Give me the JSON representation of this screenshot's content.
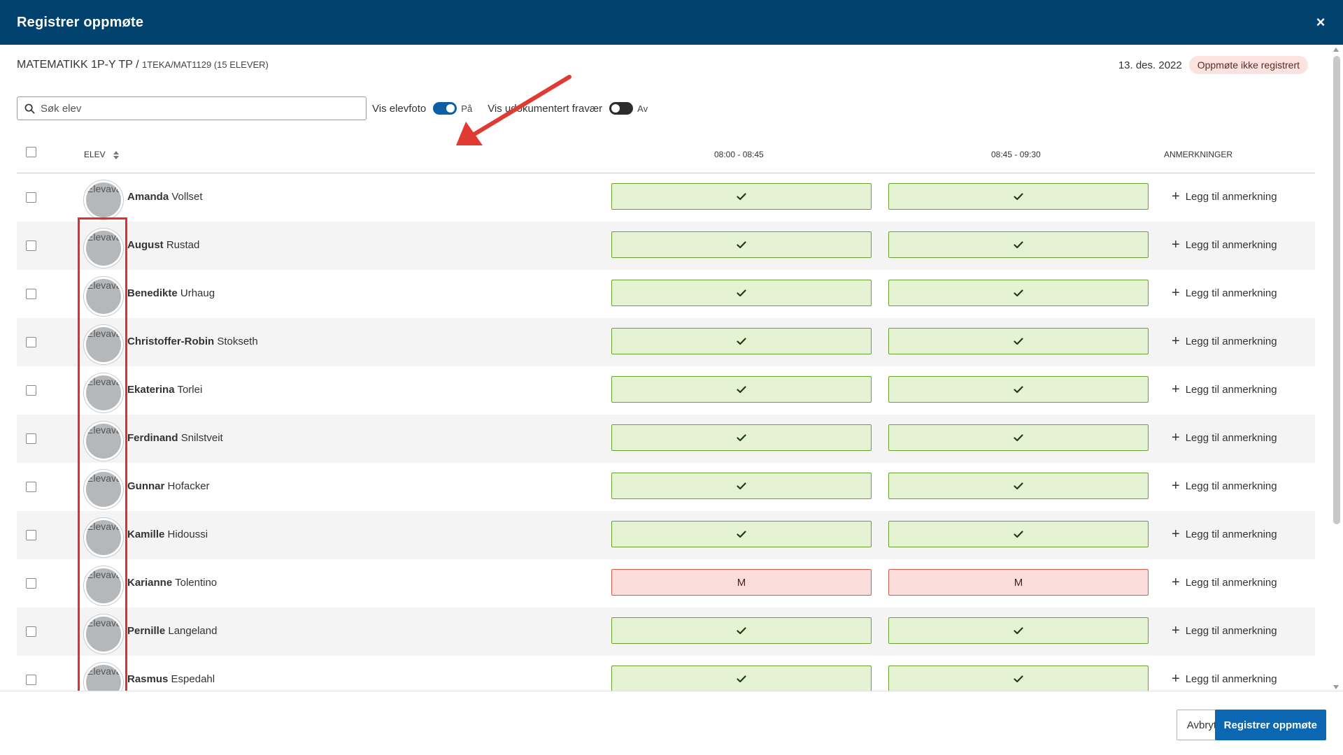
{
  "modal": {
    "title": "Registrer oppmøte",
    "close_label": "×"
  },
  "course": {
    "name": "MATEMATIKK 1P-Y TP",
    "separator": " / ",
    "group": "1TEKA/MAT1129 (15 ELEVER)",
    "date": "13. des. 2022",
    "status": "Oppmøte ikke registrert"
  },
  "toolbar": {
    "search_placeholder": "Søk elev",
    "photo_toggle_label": "Vis elevfoto",
    "photo_toggle_state": "På",
    "absence_toggle_label": "Vis udokumentert fravær",
    "absence_toggle_state": "Av"
  },
  "table": {
    "headers": {
      "student": "ELEV",
      "period1": "08:00 - 08:45",
      "period2": "08:45 - 09:30",
      "remarks": "ANMERKNINGER"
    },
    "avatar_alt": "Elevavatar",
    "remark_label": "Legg til anmerkning",
    "rows": [
      {
        "first": "Amanda",
        "last": "Vollset",
        "p1": "present",
        "p2": "present"
      },
      {
        "first": "August",
        "last": "Rustad",
        "p1": "present",
        "p2": "present"
      },
      {
        "first": "Benedikte",
        "last": "Urhaug",
        "p1": "present",
        "p2": "present"
      },
      {
        "first": "Christoffer-Robin",
        "last": "Stokseth",
        "p1": "present",
        "p2": "present"
      },
      {
        "first": "Ekaterina",
        "last": "Torlei",
        "p1": "present",
        "p2": "present"
      },
      {
        "first": "Ferdinand",
        "last": "Snilstveit",
        "p1": "present",
        "p2": "present"
      },
      {
        "first": "Gunnar",
        "last": "Hofacker",
        "p1": "present",
        "p2": "present"
      },
      {
        "first": "Kamille",
        "last": "Hidoussi",
        "p1": "present",
        "p2": "present"
      },
      {
        "first": "Karianne",
        "last": "Tolentino",
        "p1": "M",
        "p2": "M"
      },
      {
        "first": "Pernille",
        "last": "Langeland",
        "p1": "present",
        "p2": "present"
      },
      {
        "first": "Rasmus",
        "last": "Espedahl",
        "p1": "present",
        "p2": "present"
      }
    ]
  },
  "footer": {
    "cancel_label": "Avbryt",
    "submit_label": "Registrer oppmøte"
  },
  "colors": {
    "header_bg": "#01416e",
    "present_bg": "#e5f2d4",
    "present_border": "#6aa132",
    "absent_bg": "#fbdedb",
    "absent_border": "#d35c4f",
    "primary_button": "#0b67b2",
    "annotation": "#e02f2f"
  },
  "icons": {
    "close": "close-icon",
    "search": "search-icon",
    "sort": "sort-icon",
    "check": "check-icon",
    "plus": "plus-icon"
  }
}
